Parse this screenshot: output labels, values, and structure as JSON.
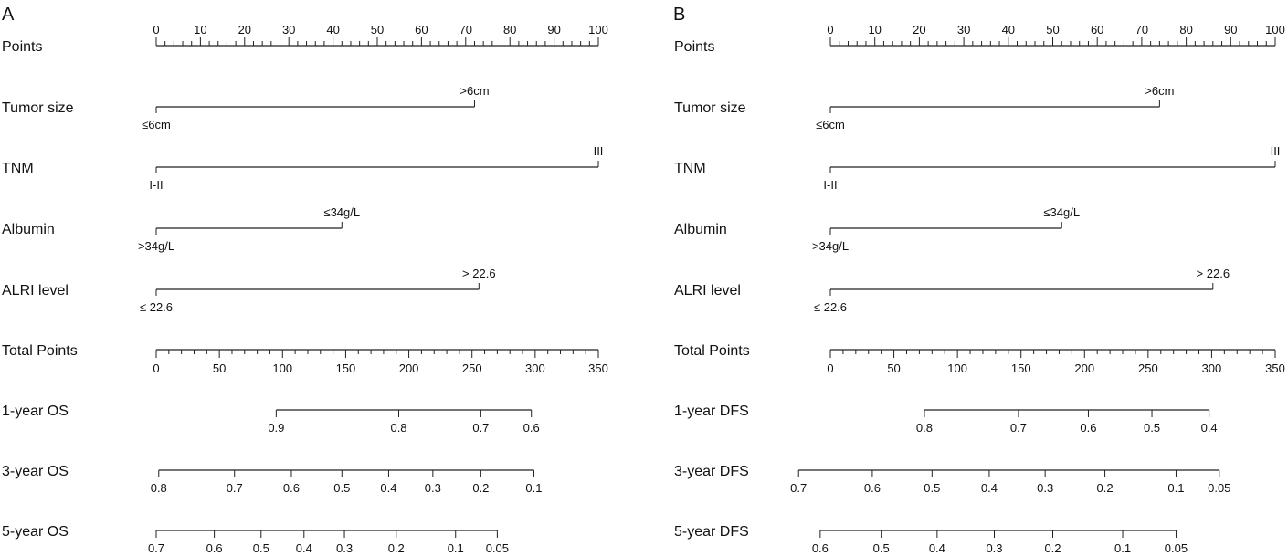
{
  "chart_data": [
    {
      "type": "nomogram",
      "panel": "A",
      "rows": [
        {
          "label": "Points",
          "kind": "points",
          "major_labels": [
            "0",
            "10",
            "20",
            "30",
            "40",
            "50",
            "60",
            "70",
            "80",
            "90",
            "100"
          ]
        },
        {
          "label": "Tumor size",
          "kind": "factor",
          "start": 0,
          "end": 72,
          "low_label": "≤6cm",
          "high_label": ">6cm"
        },
        {
          "label": "TNM",
          "kind": "factor",
          "start": 0,
          "end": 100,
          "low_label": "I-II",
          "high_label": "III"
        },
        {
          "label": "Albumin",
          "kind": "factor",
          "start": 0,
          "end": 42,
          "low_label": ">34g/L",
          "high_label": "≤34g/L"
        },
        {
          "label": "ALRI level",
          "kind": "factor",
          "start": 0,
          "end": 73,
          "low_label": "≤ 22.6",
          "high_label": "> 22.6"
        },
        {
          "label": "Total Points",
          "kind": "total",
          "major_labels": [
            "0",
            "50",
            "100",
            "150",
            "200",
            "250",
            "300",
            "350"
          ]
        },
        {
          "label": "1-year OS",
          "kind": "prob",
          "range": [
            95,
            297
          ],
          "ticks": [
            {
              "label": "0.9",
              "at": 95
            },
            {
              "label": "0.8",
              "at": 192
            },
            {
              "label": "0.7",
              "at": 257
            },
            {
              "label": "0.6",
              "at": 297
            }
          ]
        },
        {
          "label": "3-year OS",
          "kind": "prob",
          "range": [
            2,
            299
          ],
          "ticks": [
            {
              "label": "0.8",
              "at": 2
            },
            {
              "label": "0.7",
              "at": 62
            },
            {
              "label": "0.6",
              "at": 107
            },
            {
              "label": "0.5",
              "at": 147
            },
            {
              "label": "0.4",
              "at": 184
            },
            {
              "label": "0.3",
              "at": 219
            },
            {
              "label": "0.2",
              "at": 257
            },
            {
              "label": "0.1",
              "at": 299
            }
          ]
        },
        {
          "label": "5-year OS",
          "kind": "prob",
          "range": [
            0,
            270
          ],
          "ticks": [
            {
              "label": "0.7",
              "at": 0
            },
            {
              "label": "0.6",
              "at": 46
            },
            {
              "label": "0.5",
              "at": 83
            },
            {
              "label": "0.4",
              "at": 117
            },
            {
              "label": "0.3",
              "at": 149
            },
            {
              "label": "0.2",
              "at": 190
            },
            {
              "label": "0.1",
              "at": 237
            },
            {
              "label": "0.05",
              "at": 270
            }
          ]
        }
      ]
    },
    {
      "type": "nomogram",
      "panel": "B",
      "rows": [
        {
          "label": "Points",
          "kind": "points",
          "major_labels": [
            "0",
            "10",
            "20",
            "30",
            "40",
            "50",
            "60",
            "70",
            "80",
            "90",
            "100"
          ]
        },
        {
          "label": "Tumor size",
          "kind": "factor",
          "start": 0,
          "end": 74,
          "low_label": "≤6cm",
          "high_label": ">6cm"
        },
        {
          "label": "TNM",
          "kind": "factor",
          "start": 0,
          "end": 100,
          "low_label": "I-II",
          "high_label": "III"
        },
        {
          "label": "Albumin",
          "kind": "factor",
          "start": 0,
          "end": 52,
          "low_label": ">34g/L",
          "high_label": "≤34g/L"
        },
        {
          "label": "ALRI level",
          "kind": "factor",
          "start": 0,
          "end": 86,
          "low_label": "≤ 22.6",
          "high_label": "> 22.6"
        },
        {
          "label": "Total Points",
          "kind": "total",
          "major_labels": [
            "0",
            "50",
            "100",
            "150",
            "200",
            "250",
            "300",
            "350"
          ]
        },
        {
          "label": "1-year DFS",
          "kind": "prob",
          "range": [
            74,
            298
          ],
          "ticks": [
            {
              "label": "0.8",
              "at": 74
            },
            {
              "label": "0.7",
              "at": 148
            },
            {
              "label": "0.6",
              "at": 203
            },
            {
              "label": "0.5",
              "at": 253
            },
            {
              "label": "0.4",
              "at": 298
            }
          ]
        },
        {
          "label": "3-year DFS",
          "kind": "prob",
          "range": [
            -25,
            306
          ],
          "ticks": [
            {
              "label": "0.7",
              "at": -25
            },
            {
              "label": "0.6",
              "at": 33
            },
            {
              "label": "0.5",
              "at": 80
            },
            {
              "label": "0.4",
              "at": 125
            },
            {
              "label": "0.3",
              "at": 169
            },
            {
              "label": "0.2",
              "at": 216
            },
            {
              "label": "0.1",
              "at": 272
            },
            {
              "label": "0.05",
              "at": 306
            }
          ]
        },
        {
          "label": "5-year DFS",
          "kind": "prob",
          "range": [
            -8,
            272
          ],
          "ticks": [
            {
              "label": "0.6",
              "at": -8
            },
            {
              "label": "0.5",
              "at": 40
            },
            {
              "label": "0.4",
              "at": 84
            },
            {
              "label": "0.3",
              "at": 129
            },
            {
              "label": "0.2",
              "at": 175
            },
            {
              "label": "0.1",
              "at": 230
            },
            {
              "label": "0.05",
              "at": 272
            }
          ]
        }
      ]
    }
  ]
}
